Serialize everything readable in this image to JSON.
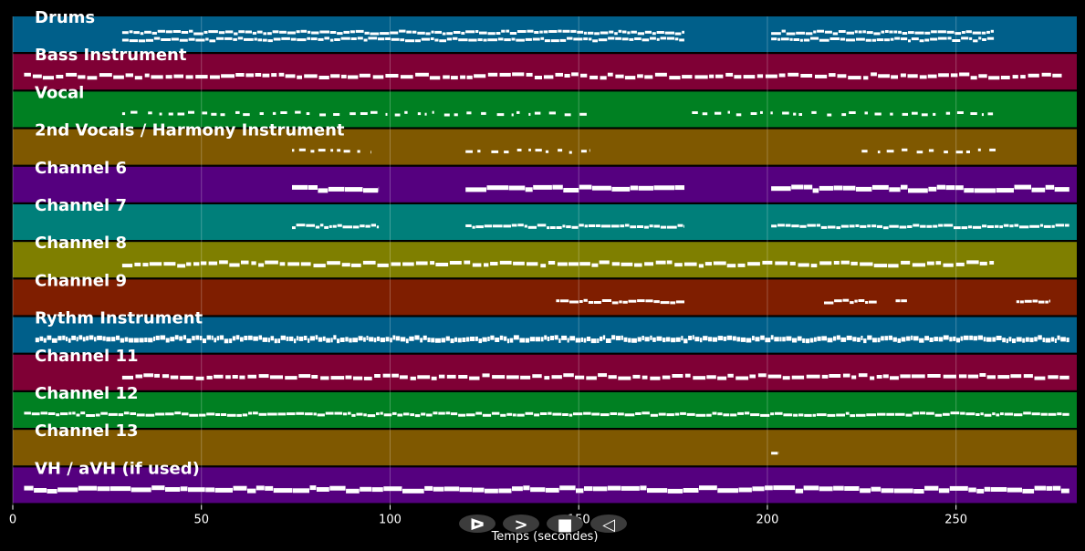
{
  "chart_data": {
    "type": "piano-roll",
    "xlabel": "Temps (secondes)",
    "xlim": [
      0,
      282
    ],
    "x_ticks": [
      0,
      50,
      100,
      150,
      200,
      250
    ],
    "grid": true,
    "tracks": [
      {
        "label": "Drums",
        "color": "#005f8a",
        "segments": [
          [
            29,
            109,
            178
          ],
          [
            201,
            260
          ]
        ],
        "lanes": 2,
        "style": "thin"
      },
      {
        "label": "Bass Instrument",
        "color": "#7f0035",
        "segments": [
          [
            3,
            278
          ]
        ],
        "lanes": 1,
        "style": "dash"
      },
      {
        "label": "Vocal",
        "color": "#008022",
        "segments": [
          [
            29,
            153
          ],
          [
            180,
            262
          ]
        ],
        "lanes": 1,
        "style": "sparse"
      },
      {
        "label": "2nd Vocals / Harmony Instrument",
        "color": "#7f5800",
        "segments": [
          [
            74,
            95
          ],
          [
            120,
            153
          ],
          [
            225,
            262
          ]
        ],
        "lanes": 1,
        "style": "sparse"
      },
      {
        "label": "Channel 6",
        "color": "#55007f",
        "segments": [
          [
            74,
            97
          ],
          [
            120,
            178
          ],
          [
            201,
            280
          ]
        ],
        "lanes": 1,
        "style": "thick"
      },
      {
        "label": "Channel 7",
        "color": "#007f7a",
        "segments": [
          [
            74,
            97
          ],
          [
            120,
            178
          ],
          [
            201,
            280
          ]
        ],
        "lanes": 1,
        "style": "thin"
      },
      {
        "label": "Channel 8",
        "color": "#7f7f00",
        "segments": [
          [
            29,
            260
          ]
        ],
        "lanes": 1,
        "style": "dash"
      },
      {
        "label": "Channel 9",
        "color": "#7f1e00",
        "segments": [
          [
            144,
            178
          ],
          [
            215,
            229
          ],
          [
            234,
            237
          ],
          [
            266,
            275
          ]
        ],
        "lanes": 1,
        "style": "thin"
      },
      {
        "label": "Rythm Instrument",
        "color": "#005f8a",
        "segments": [
          [
            6,
            280
          ]
        ],
        "lanes": 1,
        "style": "dense"
      },
      {
        "label": "Channel 11",
        "color": "#7f0035",
        "segments": [
          [
            29,
            280
          ]
        ],
        "lanes": 1,
        "style": "dash"
      },
      {
        "label": "Channel 12",
        "color": "#008022",
        "segments": [
          [
            3,
            280
          ]
        ],
        "lanes": 1,
        "style": "thin"
      },
      {
        "label": "Channel 13",
        "color": "#7f5800",
        "segments": [
          [
            201,
            203
          ]
        ],
        "lanes": 1,
        "style": "thin"
      },
      {
        "label": "VH / aVH (if used)",
        "color": "#55007f",
        "segments": [
          [
            3,
            280
          ]
        ],
        "lanes": 1,
        "style": "thick"
      }
    ]
  },
  "controls": [
    {
      "name": "play-button",
      "glyph": "ᐅ"
    },
    {
      "name": "forward-button",
      "glyph": ">"
    },
    {
      "name": "stop-button",
      "glyph": "■"
    },
    {
      "name": "rewind-button",
      "glyph": "◁"
    }
  ]
}
